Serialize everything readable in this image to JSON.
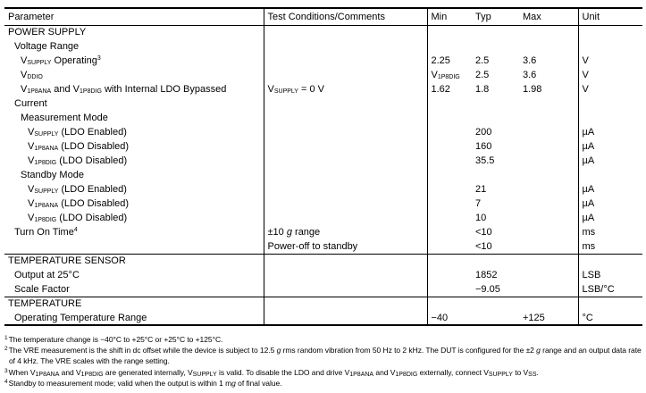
{
  "table": {
    "header": {
      "parameter": "Parameter",
      "conditions": "Test Conditions/Comments",
      "min": "Min",
      "typ": "Typ",
      "max": "Max",
      "unit": "Unit"
    },
    "rows": [
      {
        "param": "POWER SUPPLY"
      },
      {
        "param": "Voltage Range"
      },
      {
        "param": "V<sub>SUPPLY</sub> Operating<sup>3</sup>",
        "min": "2.25",
        "typ": "2.5",
        "max": "3.6",
        "unit": "V"
      },
      {
        "param": "V<sub>DDIO</sub>",
        "min": "V<sub>1P8DIG</sub>",
        "typ": "2.5",
        "max": "3.6",
        "unit": "V"
      },
      {
        "param": "V<sub>1P8ANA</sub> and V<sub>1P8DIG</sub> with Internal LDO Bypassed",
        "cond": "V<sub>SUPPLY</sub> = 0 V",
        "min": "1.62",
        "typ": "1.8",
        "max": "1.98",
        "unit": "V"
      },
      {
        "param": "Current"
      },
      {
        "param": "Measurement Mode"
      },
      {
        "param": "V<sub>SUPPLY</sub> (LDO Enabled)",
        "typ": "200",
        "unit": "µA"
      },
      {
        "param": "V<sub>1P8ANA</sub> (LDO Disabled)",
        "typ": "160",
        "unit": "µA"
      },
      {
        "param": "V<sub>1P8DIG</sub> (LDO Disabled)",
        "typ": "35.5",
        "unit": "µA"
      },
      {
        "param": "Standby Mode"
      },
      {
        "param": "V<sub>SUPPLY</sub> (LDO Enabled)",
        "typ": "21",
        "unit": "µA"
      },
      {
        "param": "V<sub>1P8ANA</sub> (LDO Disabled)",
        "typ": "7",
        "unit": "µA"
      },
      {
        "param": "V<sub>1P8DIG</sub> (LDO Disabled)",
        "typ": "10",
        "unit": "µA"
      },
      {
        "param": "Turn On Time<sup>4</sup>",
        "cond": "±10 <i>g</i> range",
        "typ": "&lt;10",
        "unit": "ms"
      },
      {
        "param": "",
        "cond": "Power-off to standby",
        "typ": "&lt;10",
        "unit": "ms"
      },
      {
        "param": "TEMPERATURE SENSOR"
      },
      {
        "param": "Output at 25°C",
        "typ": "1852",
        "unit": "LSB"
      },
      {
        "param": "Scale Factor",
        "typ": "−9.05",
        "unit": "LSB/°C"
      },
      {
        "param": "TEMPERATURE"
      },
      {
        "param": "Operating Temperature Range",
        "min": "−40",
        "max": "+125",
        "unit": "°C"
      }
    ]
  },
  "footnotes": [
    {
      "mark": "1",
      "text": "The temperature change is −40°C to +25°C or +25°C to +125°C."
    },
    {
      "mark": "2",
      "text": "The VRE measurement is the shift in dc offset while the device is subject to 12.5 <i>g</i> rms random vibration from 50 Hz to 2 kHz. The DUT is configured for the ±2 <i>g</i> range and an output data rate of 4 kHz. The VRE scales with the range setting."
    },
    {
      "mark": "3",
      "text": "When V<sub>1P8ANA</sub> and V<sub>1P8DIG</sub> are generated internally, V<sub>SUPPLY</sub> is valid. To disable the LDO and drive V<sub>1P8ANA</sub> and V<sub>1P8DIG</sub> externally, connect V<sub>SUPPLY</sub> to V<sub>SS</sub>."
    },
    {
      "mark": "4",
      "text": "Standby to measurement mode; valid when the output is within 1 m<i>g</i> of final value."
    }
  ]
}
